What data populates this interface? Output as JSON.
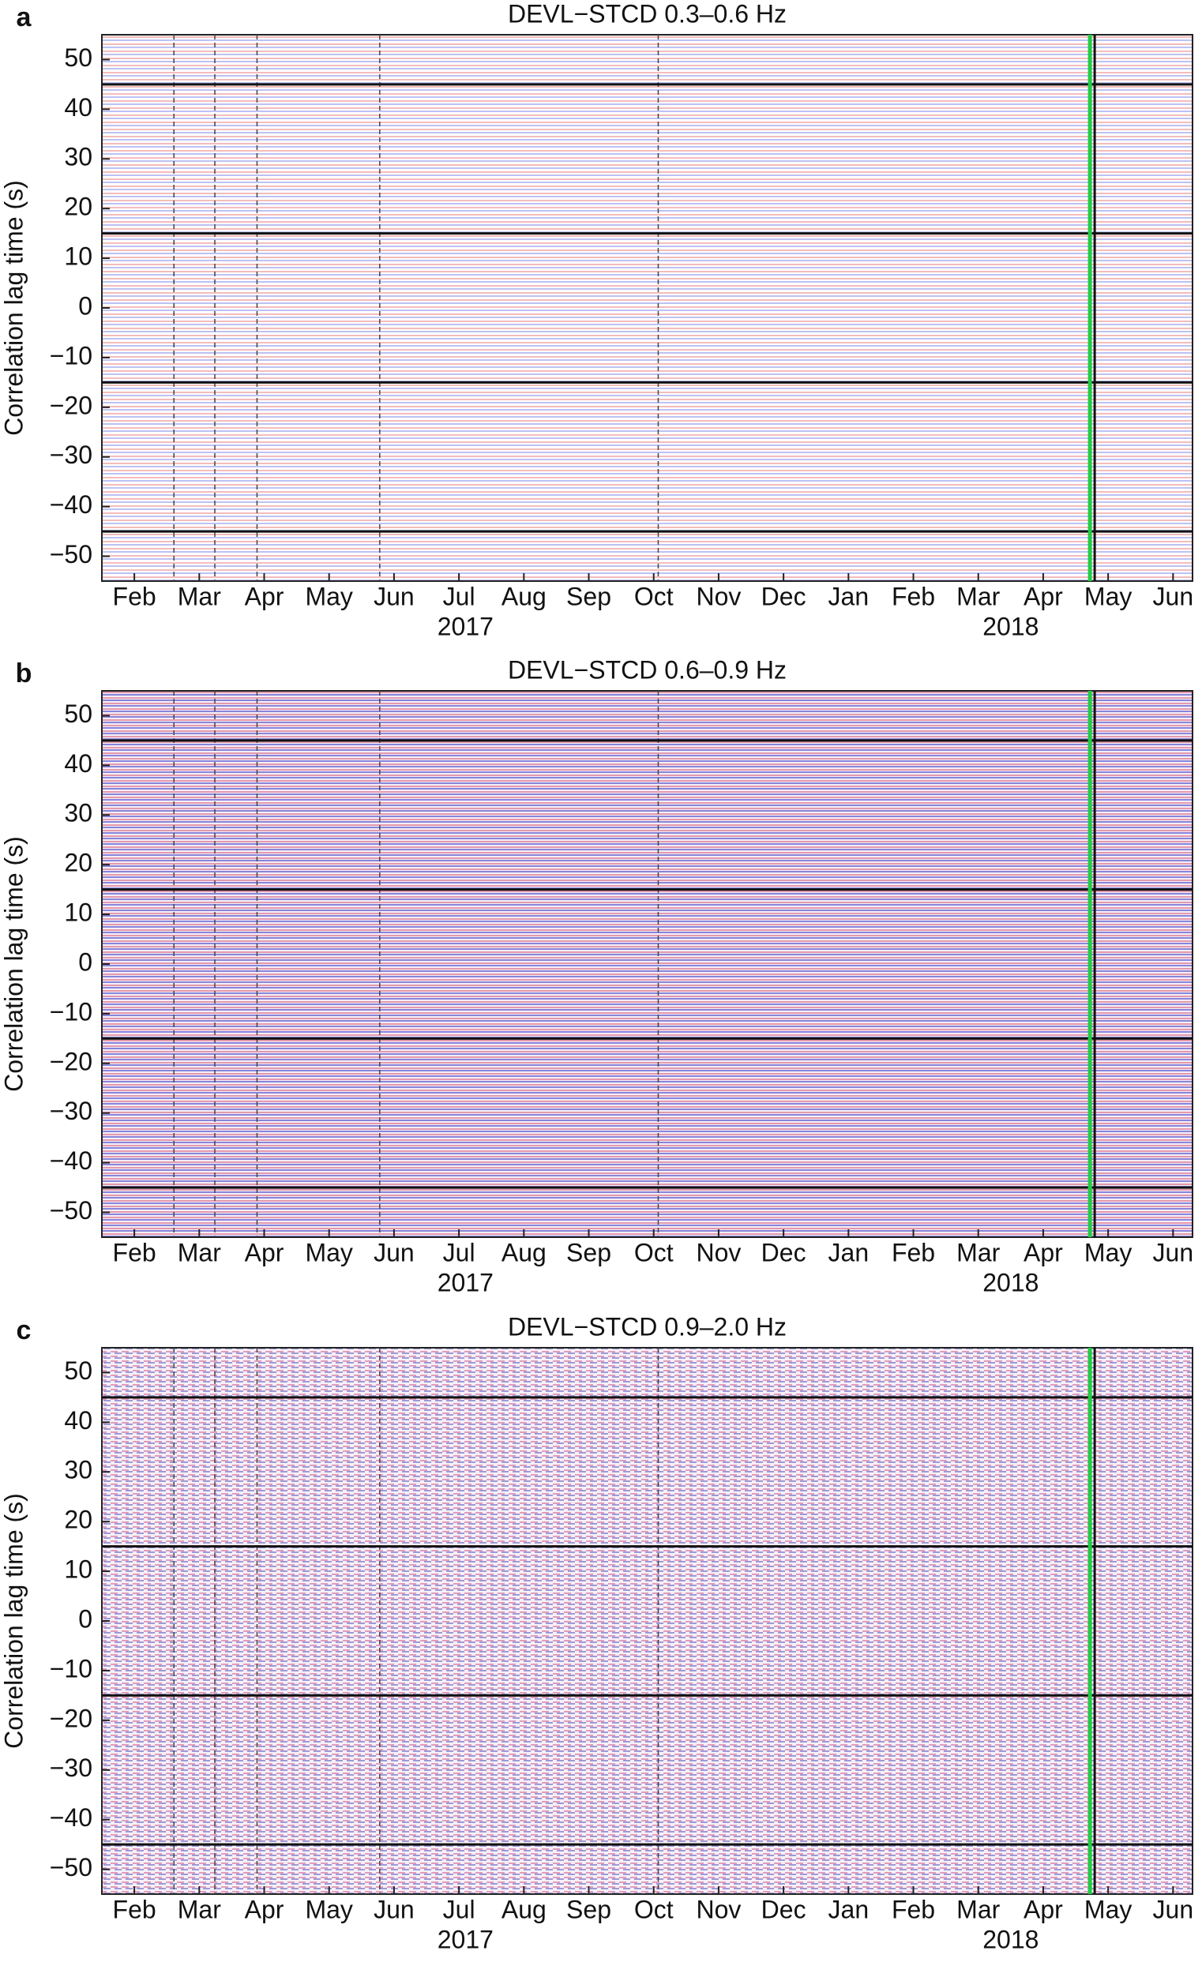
{
  "chart_data": [
    {
      "type": "heatmap",
      "panel": "a",
      "title": "DEVL−STCD 0.3–0.6 Hz",
      "ylabel": "Correlation lag time (s)",
      "ylim": [
        -55,
        55
      ],
      "yticks": [
        {
          "value": -50,
          "label": "−50"
        },
        {
          "value": -40,
          "label": "−40"
        },
        {
          "value": -30,
          "label": "−30"
        },
        {
          "value": -20,
          "label": "−20"
        },
        {
          "value": -10,
          "label": "−10"
        },
        0,
        10,
        20,
        30,
        40,
        50
      ],
      "xlim": [
        1,
        17.8
      ],
      "xticks": [
        {
          "value": 1.5,
          "label": "Feb"
        },
        {
          "value": 2.5,
          "label": "Mar"
        },
        {
          "value": 3.5,
          "label": "Apr"
        },
        {
          "value": 4.5,
          "label": "May"
        },
        {
          "value": 5.5,
          "label": "Jun"
        },
        {
          "value": 6.5,
          "label": "Jul"
        },
        {
          "value": 7.5,
          "label": "Aug"
        },
        {
          "value": 8.5,
          "label": "Sep"
        },
        {
          "value": 9.5,
          "label": "Oct"
        },
        {
          "value": 10.5,
          "label": "Nov"
        },
        {
          "value": 11.5,
          "label": "Dec"
        },
        {
          "value": 12.5,
          "label": "Jan"
        },
        {
          "value": 13.5,
          "label": "Feb"
        },
        {
          "value": 14.5,
          "label": "Mar"
        },
        {
          "value": 15.5,
          "label": "Apr"
        },
        {
          "value": 16.5,
          "label": "May"
        },
        {
          "value": 17.5,
          "label": "Jun"
        }
      ],
      "year_labels": [
        {
          "value": 6.6,
          "label": "2017"
        },
        {
          "value": 15,
          "label": "2018"
        }
      ],
      "hlines": [
        -45,
        -15,
        15,
        45
      ],
      "vlines": [
        2.11,
        2.74,
        3.39,
        5.28,
        9.57
      ],
      "event_line": 16.22,
      "event_line_color": "#22cc44"
    },
    {
      "type": "heatmap",
      "panel": "b",
      "title": "DEVL−STCD 0.6–0.9 Hz",
      "ylabel": "Correlation lag time (s)",
      "ylim": [
        -55,
        55
      ],
      "yticks": [
        {
          "value": -50,
          "label": "−50"
        },
        {
          "value": -40,
          "label": "−40"
        },
        {
          "value": -30,
          "label": "−30"
        },
        {
          "value": -20,
          "label": "−20"
        },
        {
          "value": -10,
          "label": "−10"
        },
        0,
        10,
        20,
        30,
        40,
        50
      ],
      "xlim": [
        1,
        17.8
      ],
      "xticks": [
        {
          "value": 1.5,
          "label": "Feb"
        },
        {
          "value": 2.5,
          "label": "Mar"
        },
        {
          "value": 3.5,
          "label": "Apr"
        },
        {
          "value": 4.5,
          "label": "May"
        },
        {
          "value": 5.5,
          "label": "Jun"
        },
        {
          "value": 6.5,
          "label": "Jul"
        },
        {
          "value": 7.5,
          "label": "Aug"
        },
        {
          "value": 8.5,
          "label": "Sep"
        },
        {
          "value": 9.5,
          "label": "Oct"
        },
        {
          "value": 10.5,
          "label": "Nov"
        },
        {
          "value": 11.5,
          "label": "Dec"
        },
        {
          "value": 12.5,
          "label": "Jan"
        },
        {
          "value": 13.5,
          "label": "Feb"
        },
        {
          "value": 14.5,
          "label": "Mar"
        },
        {
          "value": 15.5,
          "label": "Apr"
        },
        {
          "value": 16.5,
          "label": "May"
        },
        {
          "value": 17.5,
          "label": "Jun"
        }
      ],
      "year_labels": [
        {
          "value": 6.6,
          "label": "2017"
        },
        {
          "value": 15,
          "label": "2018"
        }
      ],
      "hlines": [
        -45,
        -15,
        15,
        45
      ],
      "vlines": [
        2.11,
        2.74,
        3.39,
        5.28,
        9.57
      ],
      "event_line": 16.22,
      "event_line_color": "#22cc44"
    },
    {
      "type": "heatmap",
      "panel": "c",
      "title": "DEVL−STCD 0.9–2.0 Hz",
      "ylabel": "Correlation lag time (s)",
      "ylim": [
        -55,
        55
      ],
      "yticks": [
        {
          "value": -50,
          "label": "−50"
        },
        {
          "value": -40,
          "label": "−40"
        },
        {
          "value": -30,
          "label": "−30"
        },
        {
          "value": -20,
          "label": "−20"
        },
        {
          "value": -10,
          "label": "−10"
        },
        0,
        10,
        20,
        30,
        40,
        50
      ],
      "xlim": [
        1,
        17.8
      ],
      "xticks": [
        {
          "value": 1.5,
          "label": "Feb"
        },
        {
          "value": 2.5,
          "label": "Mar"
        },
        {
          "value": 3.5,
          "label": "Apr"
        },
        {
          "value": 4.5,
          "label": "May"
        },
        {
          "value": 5.5,
          "label": "Jun"
        },
        {
          "value": 6.5,
          "label": "Jul"
        },
        {
          "value": 7.5,
          "label": "Aug"
        },
        {
          "value": 8.5,
          "label": "Sep"
        },
        {
          "value": 9.5,
          "label": "Oct"
        },
        {
          "value": 10.5,
          "label": "Nov"
        },
        {
          "value": 11.5,
          "label": "Dec"
        },
        {
          "value": 12.5,
          "label": "Jan"
        },
        {
          "value": 13.5,
          "label": "Feb"
        },
        {
          "value": 14.5,
          "label": "Mar"
        },
        {
          "value": 15.5,
          "label": "Apr"
        },
        {
          "value": 16.5,
          "label": "May"
        },
        {
          "value": 17.5,
          "label": "Jun"
        }
      ],
      "year_labels": [
        {
          "value": 6.6,
          "label": "2017"
        },
        {
          "value": 15,
          "label": "2018"
        }
      ],
      "hlines": [
        -45,
        -15,
        15,
        45
      ],
      "vlines": [
        2.11,
        2.74,
        3.39,
        5.28,
        9.57
      ],
      "event_line": 16.22,
      "event_line_color": "#22cc44"
    }
  ]
}
